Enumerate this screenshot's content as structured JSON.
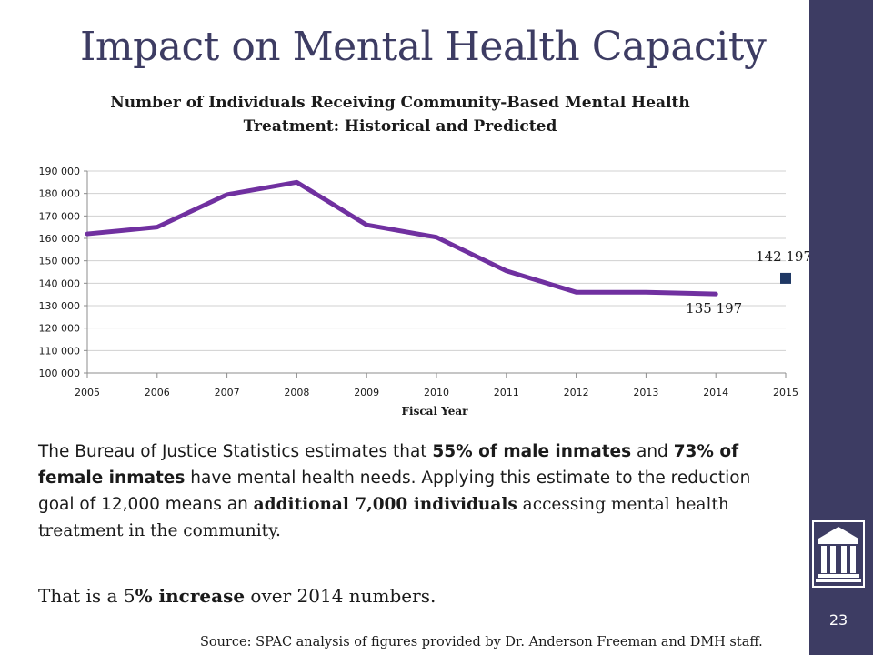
{
  "slide": {
    "title": "Impact on Mental Health Capacity",
    "page_number": "23",
    "body": {
      "p1": "The Bureau of Justice Statistics estimates that ",
      "b1": "55% of male inmates",
      "p2": " and ",
      "b2": "73% of female inmates",
      "p3": " have mental health needs. Applying this estimate to the reduction goal of 12,000 means an ",
      "b3": "additional 7,000 individuals",
      "p4": " accessing mental health treatment in the community."
    },
    "conclusion": {
      "p1": "That is a 5",
      "b1": "% increase",
      "p2": " over 2014 numbers."
    },
    "source": "Source: SPAC analysis of figures provided by Dr. Anderson Freeman and DMH staff.",
    "icon": "courthouse-icon",
    "colors": {
      "sidebar": "#3d3c63",
      "title": "#3d3c63",
      "line": "#7030a0",
      "marker": "#1f3864"
    }
  },
  "chart_data": {
    "type": "line",
    "title": "Number of Individuals Receiving Community-Based Mental Health Treatment: Historical and Predicted",
    "xlabel": "Fiscal Year",
    "ylabel": "",
    "categories": [
      "2005",
      "2006",
      "2007",
      "2008",
      "2009",
      "2010",
      "2011",
      "2012",
      "2013",
      "2014",
      "2015"
    ],
    "y_ticks": [
      "100 000",
      "110 000",
      "120 000",
      "130 000",
      "140 000",
      "150 000",
      "160 000",
      "170 000",
      "180 000",
      "190 000"
    ],
    "ylim": [
      100000,
      190000
    ],
    "grid": true,
    "legend": "none",
    "series": [
      {
        "values": [
          162000,
          165000,
          179500,
          185000,
          166000,
          160500,
          145500,
          136000,
          136000,
          135197,
          null
        ],
        "color": "#7030a0",
        "style": "line"
      },
      {
        "values": [
          null,
          null,
          null,
          null,
          null,
          null,
          null,
          null,
          null,
          null,
          142197
        ],
        "color": "#1f3864",
        "style": "marker-square"
      }
    ],
    "annotations": [
      {
        "x": "2014",
        "text": "135 197"
      },
      {
        "x": "2015",
        "text": "142 197"
      }
    ]
  }
}
